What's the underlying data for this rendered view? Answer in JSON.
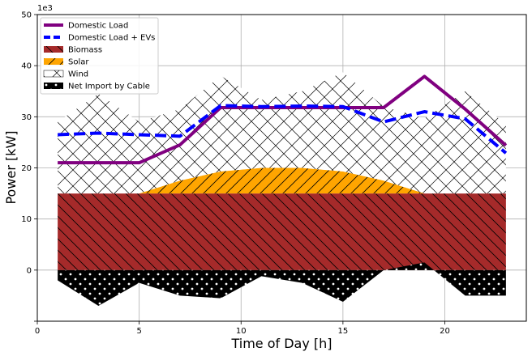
{
  "chart_data": {
    "type": "area",
    "title": "",
    "xlabel": "Time of Day [h]",
    "ylabel": "Power [kW]",
    "y_offset_label": "1e3",
    "xlim": [
      0,
      24
    ],
    "ylim": [
      -10,
      50
    ],
    "xticks": [
      0,
      5,
      10,
      15,
      20
    ],
    "xtick_labels": [
      "0",
      "5",
      "10",
      "15",
      "20"
    ],
    "yticks": [
      -10,
      0,
      10,
      20,
      30,
      40,
      50
    ],
    "ytick_labels": [
      "",
      "0",
      "10",
      "20",
      "30",
      "40",
      "50"
    ],
    "grid": true,
    "legend_position": "top-left",
    "x": [
      1,
      3,
      5,
      7,
      9,
      11,
      13,
      15,
      17,
      19,
      21,
      23
    ],
    "stacked_areas": [
      {
        "name": "Biomass",
        "color": "#a52a2a",
        "hatch": "backslash",
        "values": [
          15,
          15,
          15,
          15,
          15,
          15,
          15,
          15,
          15,
          15,
          15,
          15
        ]
      },
      {
        "name": "Solar",
        "color": "#ffa500",
        "hatch": "slash",
        "values": [
          0,
          0,
          0,
          2.5,
          4.3,
          5,
          5,
          4.3,
          2.5,
          0,
          0,
          0
        ]
      },
      {
        "name": "Wind",
        "color": "#ffffff",
        "hatch": "cross",
        "values": [
          14,
          19.5,
          14,
          14,
          18.7,
          13.3,
          15,
          19.4,
          14.5,
          14.7,
          20,
          13.5
        ]
      }
    ],
    "import_area": {
      "name": "Net Import by Cable",
      "color": "#000000",
      "hatch": "dots",
      "values": [
        -2,
        -7,
        -2.5,
        -5,
        -5.5,
        -1.2,
        -2.5,
        -6.2,
        0,
        1.5,
        -5,
        -5
      ]
    },
    "series": [
      {
        "name": "Domestic Load",
        "color": "#800080",
        "style": "solid",
        "values": [
          21,
          21,
          21,
          24.5,
          31.8,
          31.8,
          31.8,
          31.8,
          31.8,
          37.9,
          31.5,
          24.4
        ]
      },
      {
        "name": "Domestic Load + EVs",
        "color": "#0000ff",
        "style": "dashed",
        "values": [
          26.5,
          26.8,
          26.5,
          26.2,
          32.2,
          32,
          32.1,
          32,
          29,
          31,
          29.6,
          22.9
        ]
      }
    ],
    "legend": [
      {
        "name": "Domestic Load",
        "kind": "line",
        "color": "#800080",
        "style": "solid"
      },
      {
        "name": "Domestic Load + EVs",
        "kind": "line",
        "color": "#0000ff",
        "style": "dashed"
      },
      {
        "name": "Biomass",
        "kind": "patch",
        "color": "#a52a2a",
        "hatch": "backslash"
      },
      {
        "name": "Solar",
        "kind": "patch",
        "color": "#ffa500",
        "hatch": "slash"
      },
      {
        "name": "Wind",
        "kind": "patch",
        "color": "#ffffff",
        "hatch": "cross"
      },
      {
        "name": "Net Import by Cable",
        "kind": "patch",
        "color": "#000000",
        "hatch": "dots"
      }
    ]
  }
}
